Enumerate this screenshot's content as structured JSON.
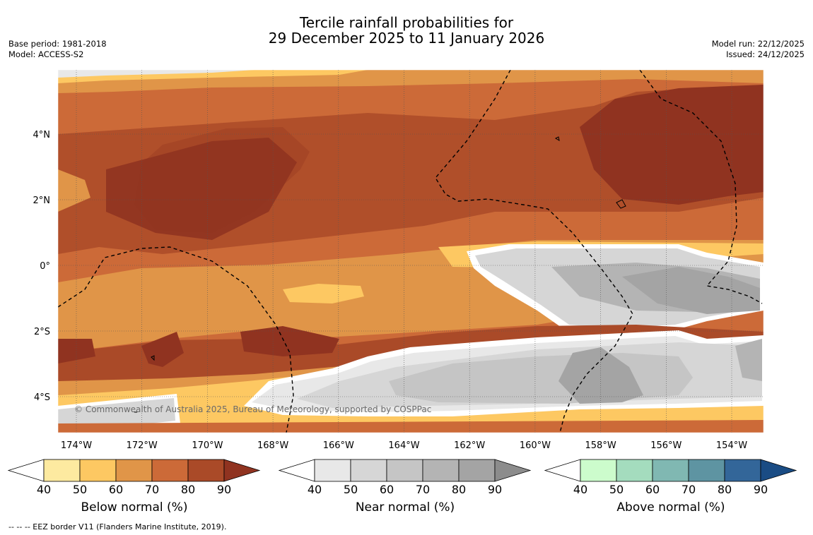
{
  "header": {
    "title_line1": "Tercile rainfall probabilities for",
    "title_line2": "29 December 2025 to 11 January 2026",
    "base_period": "Base period: 1981-2018",
    "model": "Model: ACCESS-S2",
    "model_run": "Model run: 22/12/2025",
    "issued": "Issued: 24/12/2025"
  },
  "map": {
    "copyright": "© Commonwealth of Australia 2025, Bureau of Meteorology, supported by COSPPac",
    "lon_labels": [
      "174°W",
      "172°W",
      "170°W",
      "168°W",
      "166°W",
      "164°W",
      "162°W",
      "160°W",
      "158°W",
      "156°W",
      "154°W"
    ],
    "lat_labels": [
      "4°N",
      "2°N",
      "0°",
      "2°S",
      "4°S"
    ]
  },
  "colorbars": [
    {
      "name": "below",
      "label": "Below normal (%)",
      "ticks": [
        "40",
        "50",
        "60",
        "70",
        "80",
        "90"
      ],
      "colors": [
        "#ffffff",
        "#fdeaa0",
        "#fdc862",
        "#e09548",
        "#cc6a38",
        "#aa4a28",
        "#903320"
      ]
    },
    {
      "name": "near",
      "label": "Near normal (%)",
      "ticks": [
        "40",
        "50",
        "60",
        "70",
        "80",
        "90"
      ],
      "colors": [
        "#ffffff",
        "#e8e8e8",
        "#d6d6d6",
        "#c5c5c5",
        "#b4b4b4",
        "#a4a4a4",
        "#8c8c8c"
      ]
    },
    {
      "name": "above",
      "label": "Above normal (%)",
      "ticks": [
        "40",
        "50",
        "60",
        "70",
        "80",
        "90"
      ],
      "colors": [
        "#ffffff",
        "#ccfccc",
        "#a4dcbe",
        "#80b8b2",
        "#5e94a2",
        "#336699",
        "#1a4c84"
      ]
    }
  ],
  "footer": "--  --  -- EEZ border V11 (Flanders Marine Institute, 2019)."
}
